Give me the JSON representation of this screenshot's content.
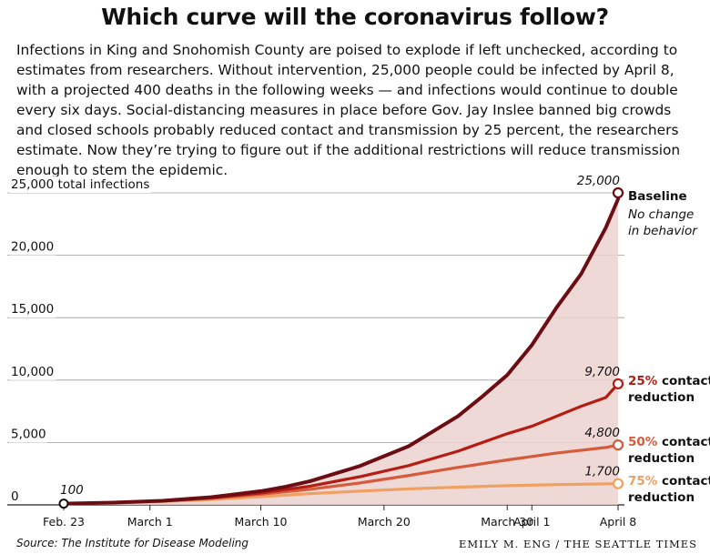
{
  "header": {
    "title": "Which curve will the coronavirus follow?",
    "intro": "Infections in King and Snohomish County are poised to explode if left unchecked, according to estimates from researchers. Without intervention, 25,000 people could be infected by April 8, with a projected 400 deaths in the following weeks — and infections would continue to double every six days. Social-distancing measures in place before Gov. Jay Inslee banned big crowds and closed schools probably reduced contact and transmission by 25 percent, the researchers estimate. Now they’re trying to figure out if the additional restrictions will reduce transmission enough to stem the epidemic."
  },
  "footer": {
    "source": "Source: The Institute for Disease Modeling",
    "credit": "EMILY M. ENG / THE SEATTLE TIMES"
  },
  "chart_data": {
    "type": "line",
    "ylim": [
      0,
      25000
    ],
    "y_ticks": [
      {
        "value": 0,
        "label": "0"
      },
      {
        "value": 5000,
        "label": "5,000"
      },
      {
        "value": 10000,
        "label": "10,000"
      },
      {
        "value": 15000,
        "label": "15,000"
      },
      {
        "value": 20000,
        "label": "20,000"
      },
      {
        "value": 25000,
        "label": "25,000 total infections"
      }
    ],
    "x_ticks": [
      {
        "day": 0,
        "label": "Feb. 23"
      },
      {
        "day": 7,
        "label": "March 1"
      },
      {
        "day": 16,
        "label": "March 10"
      },
      {
        "day": 26,
        "label": "March 20"
      },
      {
        "day": 36,
        "label": "March 30"
      },
      {
        "day": 38,
        "label": "April 1"
      },
      {
        "day": 45,
        "label": "April 8"
      }
    ],
    "start_label": "100",
    "series": [
      {
        "name": "Baseline",
        "subtitle": [
          "No change",
          "in behavior"
        ],
        "end_label": "25,000",
        "color": "#6b0d12",
        "x": [
          0,
          4,
          8,
          12,
          16,
          18,
          20,
          22,
          24,
          26,
          28,
          30,
          32,
          34,
          36,
          38,
          40,
          42,
          44,
          45
        ],
        "values": [
          100,
          180,
          330,
          620,
          1100,
          1450,
          1900,
          2500,
          3100,
          3900,
          4700,
          5900,
          7100,
          8700,
          10400,
          12800,
          15800,
          18500,
          22200,
          24500
        ]
      },
      {
        "name": "25% contact reduction",
        "label_bold": "25%",
        "label_rest": "contact",
        "label_line2": "reduction",
        "end_label": "9,700",
        "color": "#b51c12",
        "x": [
          0,
          4,
          8,
          12,
          16,
          20,
          24,
          28,
          32,
          36,
          38,
          40,
          42,
          44,
          45
        ],
        "values": [
          100,
          180,
          320,
          570,
          950,
          1500,
          2250,
          3150,
          4300,
          5700,
          6300,
          7100,
          7900,
          8600,
          9700
        ]
      },
      {
        "name": "50% contact reduction",
        "label_bold": "50%",
        "label_rest": "contact",
        "label_line2": "reduction",
        "end_label": "4,800",
        "color": "#d65a3b",
        "x": [
          0,
          4,
          8,
          12,
          16,
          20,
          24,
          28,
          32,
          36,
          40,
          44,
          45
        ],
        "values": [
          100,
          170,
          300,
          520,
          850,
          1250,
          1750,
          2350,
          3000,
          3600,
          4150,
          4600,
          4800
        ]
      },
      {
        "name": "75% contact reduction",
        "label_bold": "75%",
        "label_rest": "contact",
        "label_line2": "reduction",
        "end_label": "1,700",
        "color": "#f0a060",
        "x": [
          0,
          4,
          8,
          12,
          16,
          20,
          24,
          28,
          32,
          36,
          40,
          45
        ],
        "values": [
          100,
          160,
          270,
          430,
          650,
          900,
          1100,
          1280,
          1420,
          1540,
          1620,
          1700
        ]
      }
    ]
  }
}
